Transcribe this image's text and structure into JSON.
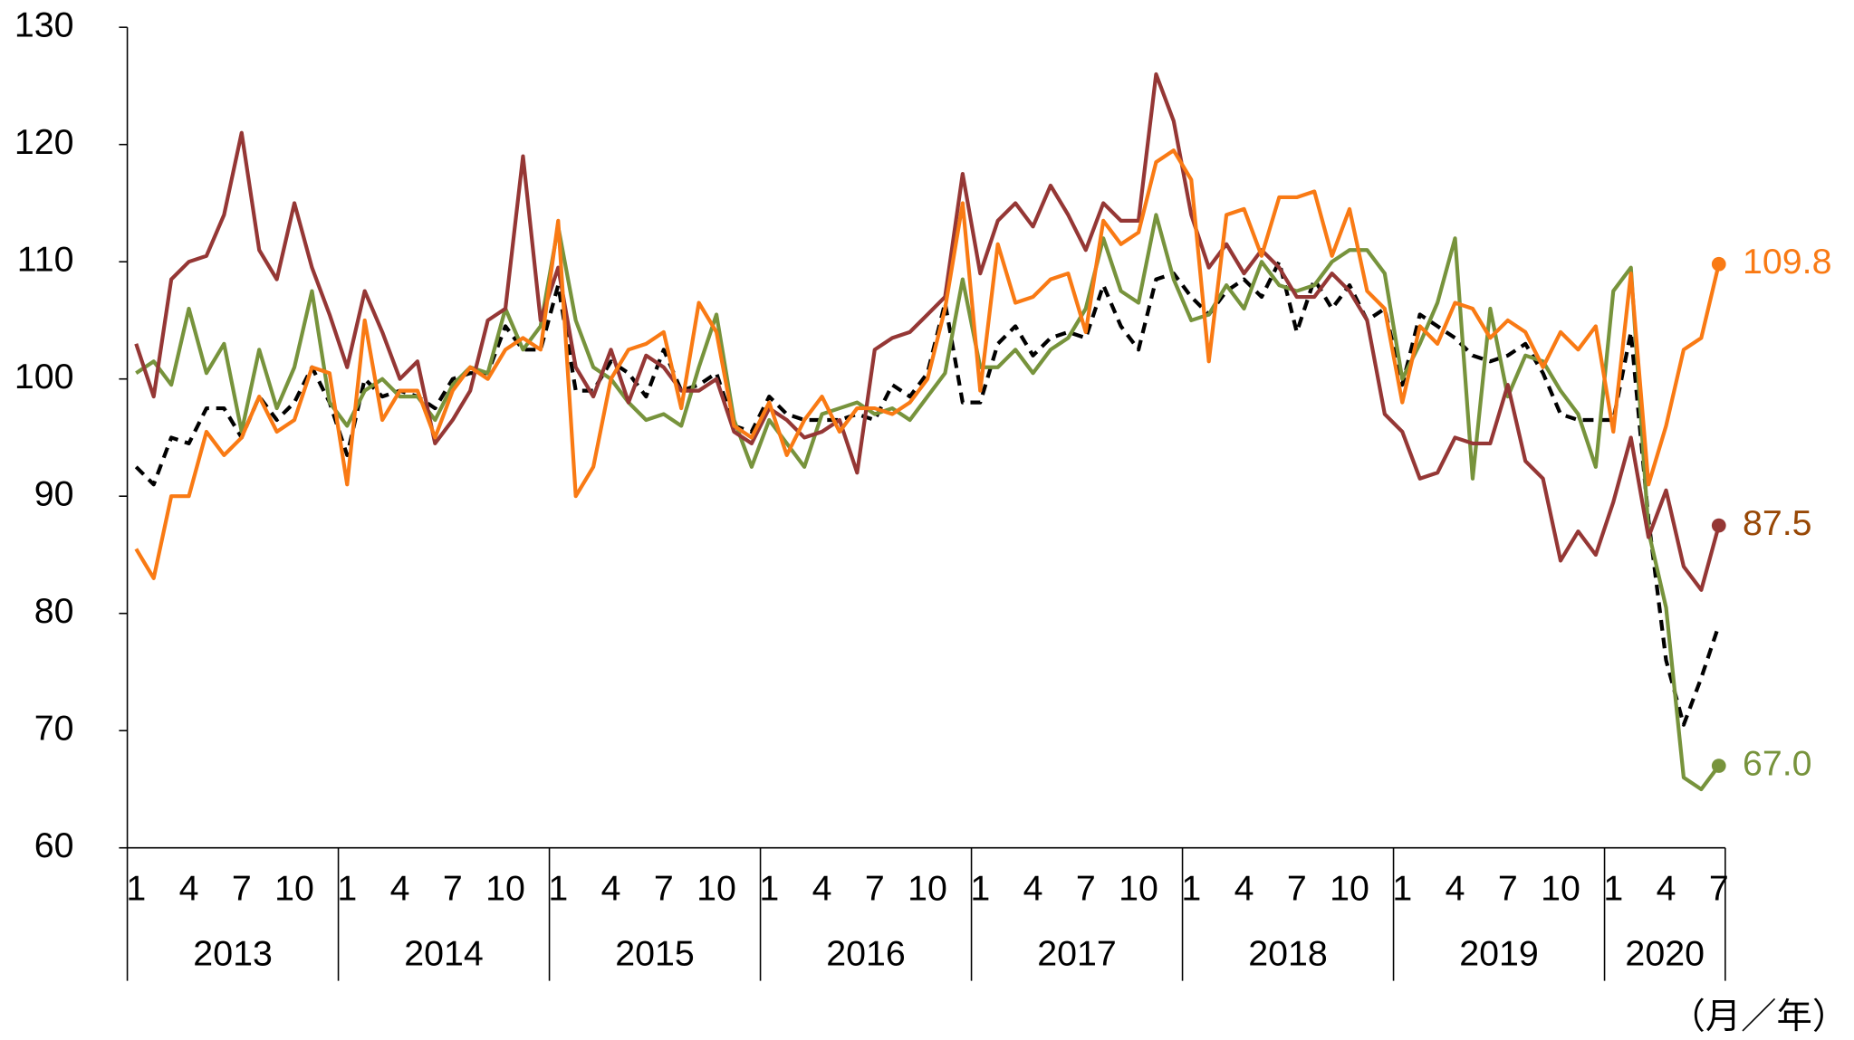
{
  "chart_data": {
    "type": "line",
    "ylim": [
      60,
      130
    ],
    "yticks": [
      60,
      70,
      80,
      90,
      100,
      110,
      120,
      130
    ],
    "x_label": "（月／年）",
    "years": [
      "2013",
      "2014",
      "2015",
      "2016",
      "2017",
      "2018",
      "2019",
      "2020"
    ],
    "categories": [
      "1",
      null,
      null,
      "4",
      null,
      null,
      "7",
      null,
      null,
      "10",
      null,
      null,
      "1",
      null,
      null,
      "4",
      null,
      null,
      "7",
      null,
      null,
      "10",
      null,
      null,
      "1",
      null,
      null,
      "4",
      null,
      null,
      "7",
      null,
      null,
      "10",
      null,
      null,
      "1",
      null,
      null,
      "4",
      null,
      null,
      "7",
      null,
      null,
      "10",
      null,
      null,
      "1",
      null,
      null,
      "4",
      null,
      null,
      "7",
      null,
      null,
      "10",
      null,
      null,
      "1",
      null,
      null,
      "4",
      null,
      null,
      "7",
      null,
      null,
      "10",
      null,
      null,
      "1",
      null,
      null,
      "4",
      null,
      null,
      "7",
      null,
      null,
      "10",
      null,
      null,
      "1",
      null,
      null,
      "4",
      null,
      null,
      "7"
    ],
    "series": [
      {
        "color": "#000000",
        "dashed": true,
        "values": [
          92.5,
          91,
          95,
          94.5,
          97.5,
          97.5,
          95,
          98.5,
          96.5,
          98,
          101,
          98,
          93.5,
          100,
          98.5,
          99,
          98.5,
          97.5,
          100,
          100.5,
          100.5,
          104.5,
          102.5,
          102.5,
          108,
          99,
          99,
          101.5,
          100.5,
          98.5,
          102.5,
          99,
          99.5,
          100.5,
          96,
          95.5,
          98.5,
          97,
          96.5,
          96.5,
          96.5,
          97,
          96.5,
          99.5,
          98.5,
          100.5,
          106.5,
          98,
          98,
          103,
          104.5,
          102,
          103.5,
          104,
          103.5,
          108,
          104.5,
          102.5,
          108.5,
          109,
          107,
          105.5,
          107.5,
          108.5,
          107,
          110,
          104,
          108.5,
          106,
          108,
          105,
          106,
          99.5,
          105.5,
          104.5,
          103.5,
          102,
          101.5,
          102,
          103,
          100.5,
          97,
          96.5,
          96.5,
          96.5,
          104,
          88,
          76,
          70.5,
          74.5,
          79
        ]
      },
      {
        "color": "#77933c",
        "label_color": "#77933c",
        "values": [
          100.5,
          101.5,
          99.5,
          106,
          100.5,
          103,
          95.5,
          102.5,
          97.5,
          101,
          107.5,
          98,
          96,
          99,
          100,
          98.5,
          98.5,
          96.5,
          99.5,
          101,
          100.5,
          106,
          102.5,
          104.5,
          113,
          105,
          101,
          100,
          98,
          96.5,
          97,
          96,
          101,
          105.5,
          96.5,
          92.5,
          96.5,
          94.5,
          92.5,
          97,
          97.5,
          98,
          97,
          97.5,
          96.5,
          98.5,
          100.5,
          108.5,
          101,
          101,
          102.5,
          100.5,
          102.5,
          103.5,
          106,
          112,
          107.5,
          106.5,
          114,
          108.5,
          105,
          105.5,
          108,
          106,
          110,
          108,
          107.5,
          108,
          110,
          111,
          111,
          109,
          100,
          103,
          106.5,
          112,
          91.5,
          106,
          98.5,
          102,
          101.5,
          99,
          97,
          92.5,
          107.5,
          109.5,
          87,
          80.5,
          66,
          65,
          67
        ],
        "value_labels": [
          null,
          null,
          null,
          null,
          null,
          null,
          null,
          null,
          null,
          null,
          null,
          null,
          null,
          null,
          null,
          null,
          null,
          null,
          null,
          null,
          null,
          null,
          null,
          null,
          null,
          null,
          null,
          null,
          null,
          null,
          null,
          null,
          null,
          null,
          null,
          null,
          null,
          null,
          null,
          null,
          null,
          null,
          null,
          null,
          null,
          null,
          null,
          null,
          null,
          null,
          null,
          null,
          null,
          null,
          null,
          null,
          null,
          null,
          null,
          null,
          null,
          null,
          null,
          null,
          null,
          null,
          null,
          null,
          null,
          null,
          null,
          null,
          null,
          null,
          null,
          null,
          null,
          null,
          null,
          null,
          null,
          null,
          null,
          null,
          null,
          null,
          null,
          null,
          null,
          null,
          "67.0"
        ]
      },
      {
        "color": "#953735",
        "label_color": "#984806",
        "values": [
          103,
          98.5,
          108.5,
          110,
          110.5,
          114,
          121,
          111,
          108.5,
          115,
          109.5,
          105.5,
          101,
          107.5,
          104,
          100,
          101.5,
          94.5,
          96.5,
          99,
          105,
          106,
          119,
          105,
          109.5,
          101,
          98.5,
          102.5,
          98,
          102,
          101,
          99,
          99,
          100,
          95.5,
          94.5,
          97.5,
          96.5,
          95,
          95.5,
          96.5,
          92,
          102.5,
          103.5,
          104,
          105.5,
          107,
          117.5,
          109,
          113.5,
          115,
          113,
          116.5,
          114,
          111,
          115,
          113.5,
          113.5,
          126,
          122,
          114,
          109.5,
          111.5,
          109,
          111,
          109.5,
          107,
          107,
          109,
          107.5,
          105,
          97,
          95.5,
          91.5,
          92,
          95,
          94.5,
          94.5,
          99.5,
          93,
          91.5,
          84.5,
          87,
          85,
          89.5,
          95,
          86.5,
          90.5,
          84,
          82,
          87.5
        ],
        "value_labels": [
          null,
          null,
          null,
          null,
          null,
          null,
          null,
          null,
          null,
          null,
          null,
          null,
          null,
          null,
          null,
          null,
          null,
          null,
          null,
          null,
          null,
          null,
          null,
          null,
          null,
          null,
          null,
          null,
          null,
          null,
          null,
          null,
          null,
          null,
          null,
          null,
          null,
          null,
          null,
          null,
          null,
          null,
          null,
          null,
          null,
          null,
          null,
          null,
          null,
          null,
          null,
          null,
          null,
          null,
          null,
          null,
          null,
          null,
          null,
          null,
          null,
          null,
          null,
          null,
          null,
          null,
          null,
          null,
          null,
          null,
          null,
          null,
          null,
          null,
          null,
          null,
          null,
          null,
          null,
          null,
          null,
          null,
          null,
          null,
          null,
          null,
          null,
          null,
          null,
          null,
          "87.5"
        ]
      },
      {
        "color": "#f97a14",
        "label_color": "#f97a14",
        "values": [
          85.5,
          83,
          90,
          90,
          95.5,
          93.5,
          95,
          98.5,
          95.5,
          96.5,
          101,
          100.5,
          91,
          105,
          96.5,
          99,
          99,
          95,
          99,
          101,
          100,
          102.5,
          103.5,
          102.5,
          113.5,
          90,
          92.5,
          100,
          102.5,
          103,
          104,
          97.5,
          106.5,
          104,
          96,
          95,
          98,
          93.5,
          96.5,
          98.5,
          95.5,
          97.5,
          97.5,
          97,
          98,
          100,
          106,
          115,
          99,
          111.5,
          106.5,
          107,
          108.5,
          109,
          104,
          113.5,
          111.5,
          112.5,
          118.5,
          119.5,
          117,
          101.5,
          114,
          114.5,
          110.5,
          115.5,
          115.5,
          116,
          110.5,
          114.5,
          107.5,
          106,
          98,
          104.5,
          103,
          106.5,
          106,
          103.5,
          105,
          104,
          101,
          104,
          102.5,
          104.5,
          95.5,
          109,
          91,
          96,
          102.5,
          103.5,
          109.8
        ],
        "value_labels": [
          null,
          null,
          null,
          null,
          null,
          null,
          null,
          null,
          null,
          null,
          null,
          null,
          null,
          null,
          null,
          null,
          null,
          null,
          null,
          null,
          null,
          null,
          null,
          null,
          null,
          null,
          null,
          null,
          null,
          null,
          null,
          null,
          null,
          null,
          null,
          null,
          null,
          null,
          null,
          null,
          null,
          null,
          null,
          null,
          null,
          null,
          null,
          null,
          null,
          null,
          null,
          null,
          null,
          null,
          null,
          null,
          null,
          null,
          null,
          null,
          null,
          null,
          null,
          null,
          null,
          null,
          null,
          null,
          null,
          null,
          null,
          null,
          null,
          null,
          null,
          null,
          null,
          null,
          null,
          null,
          null,
          null,
          null,
          null,
          null,
          null,
          null,
          null,
          null,
          null,
          "109.8"
        ]
      }
    ]
  }
}
